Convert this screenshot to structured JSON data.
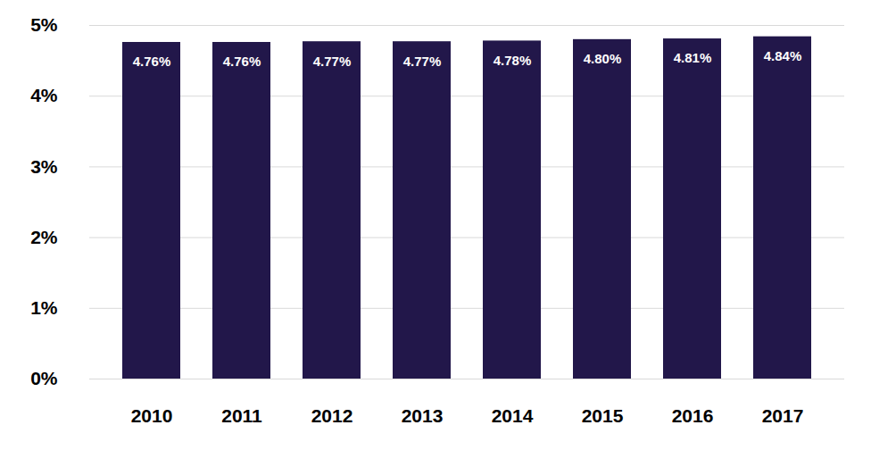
{
  "chart_data": {
    "type": "bar",
    "categories": [
      "2010",
      "2011",
      "2012",
      "2013",
      "2014",
      "2015",
      "2016",
      "2017"
    ],
    "values": [
      4.76,
      4.76,
      4.77,
      4.77,
      4.78,
      4.8,
      4.81,
      4.84
    ],
    "value_labels": [
      "4.76%",
      "4.76%",
      "4.77%",
      "4.77%",
      "4.78%",
      "4.80%",
      "4.81%",
      "4.84%"
    ],
    "color": "#22174a",
    "ylim": [
      0,
      5
    ],
    "yticks": [
      {
        "value": 0,
        "label": "0%"
      },
      {
        "value": 1,
        "label": "1%"
      },
      {
        "value": 2,
        "label": "2%"
      },
      {
        "value": 3,
        "label": "3%"
      },
      {
        "value": 4,
        "label": "4%"
      },
      {
        "value": 5,
        "label": "5%"
      }
    ],
    "grid": true,
    "data_labels": true
  }
}
